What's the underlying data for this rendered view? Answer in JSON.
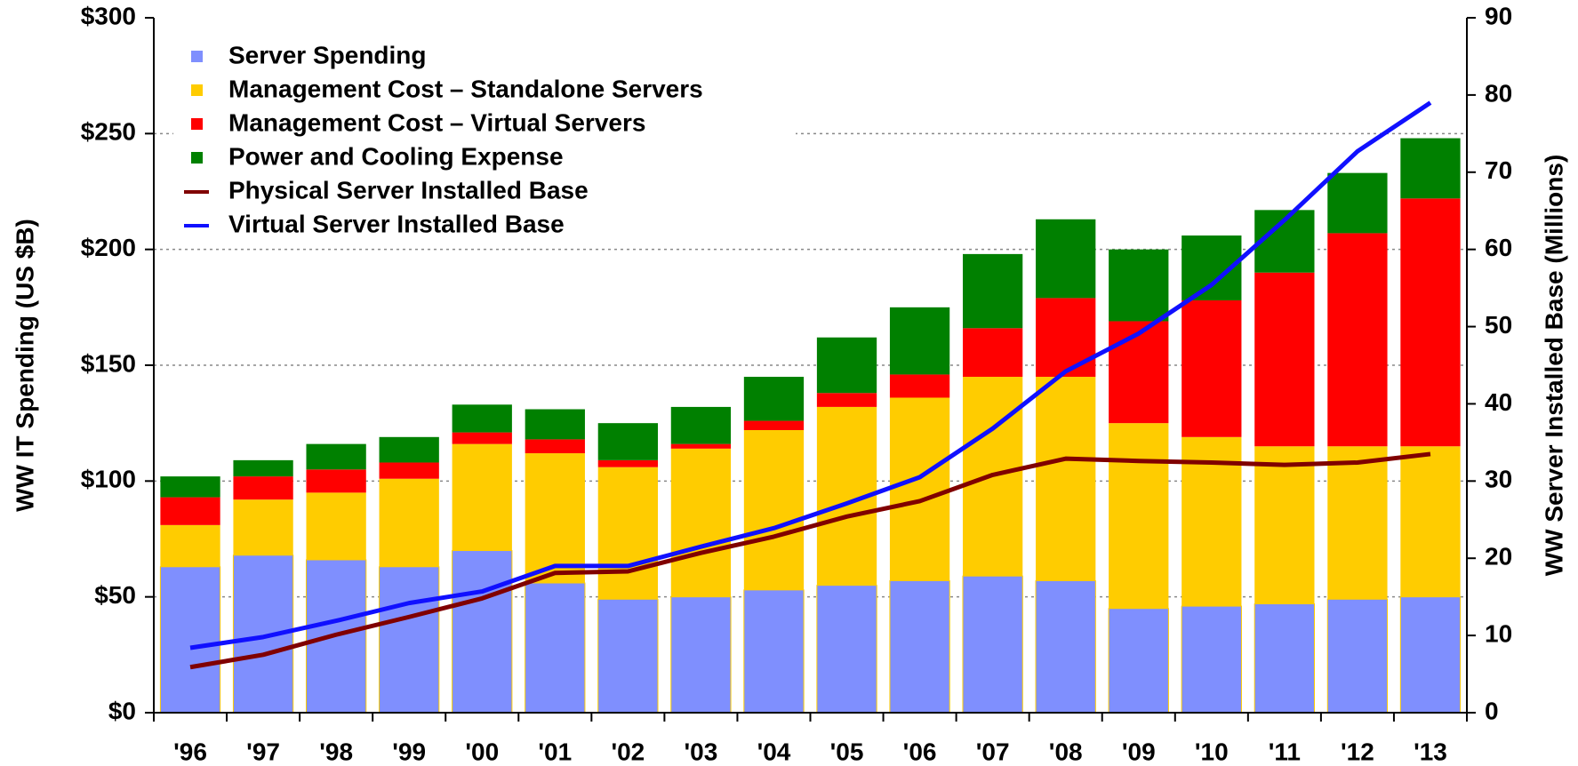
{
  "chart_data": {
    "type": "bar",
    "stacked": true,
    "categories": [
      "'96",
      "'97",
      "'98",
      "'99",
      "'00",
      "'01",
      "'02",
      "'03",
      "'04",
      "'05",
      "'06",
      "'07",
      "'08",
      "'09",
      "'10",
      "'11",
      "'12",
      "'13"
    ],
    "series": [
      {
        "name": "Server Spending",
        "color": "#7f8ffe",
        "values": [
          63,
          68,
          66,
          63,
          70,
          56,
          49,
          50,
          53,
          55,
          57,
          59,
          57,
          45,
          46,
          47,
          49,
          50
        ]
      },
      {
        "name": "Management Cost – Standalone Servers",
        "color": "#ffcc00",
        "values": [
          18,
          24,
          29,
          38,
          46,
          56,
          57,
          64,
          69,
          77,
          79,
          86,
          88,
          80,
          73,
          68,
          66,
          65
        ]
      },
      {
        "name": "Management Cost – Virtual Servers",
        "color": "#ff0000",
        "values": [
          12,
          10,
          10,
          7,
          5,
          6,
          3,
          2,
          4,
          6,
          10,
          21,
          34,
          44,
          59,
          75,
          92,
          107
        ]
      },
      {
        "name": "Power and Cooling Expense",
        "color": "#008000",
        "values": [
          9,
          7,
          11,
          11,
          12,
          13,
          16,
          16,
          19,
          24,
          29,
          32,
          34,
          31,
          28,
          27,
          26,
          26
        ]
      },
      {
        "name": "Physical Server Installed Base",
        "color": "#800000",
        "type": "line",
        "axis": "y2",
        "values": [
          5.9,
          7.5,
          10.1,
          12.4,
          14.8,
          18.1,
          18.3,
          20.7,
          22.8,
          25.4,
          27.4,
          30.8,
          32.9,
          32.6,
          32.4,
          32.1,
          32.4,
          33.5
        ]
      },
      {
        "name": "Virtual Server Installed Base",
        "color": "#1010ff",
        "type": "line",
        "axis": "y2",
        "values": [
          8.4,
          9.8,
          11.9,
          14.2,
          15.7,
          19,
          19,
          21.5,
          23.9,
          27.1,
          30.5,
          36.8,
          44.2,
          49.1,
          55.4,
          63.8,
          72.7,
          79
        ]
      }
    ],
    "ylabel": "WW IT Spending (US $B)",
    "y2label": "WW Server Installed Base (Millions)",
    "ylim": [
      0,
      300
    ],
    "yticks": [
      {
        "value": 0,
        "label": "$0"
      },
      {
        "value": 50,
        "label": "$50"
      },
      {
        "value": 100,
        "label": "$100"
      },
      {
        "value": 150,
        "label": "$150"
      },
      {
        "value": 200,
        "label": "$200"
      },
      {
        "value": 250,
        "label": "$250"
      },
      {
        "value": 300,
        "label": "$300"
      }
    ],
    "y2lim": [
      0,
      90
    ],
    "y2ticks": [
      0,
      10,
      20,
      30,
      40,
      50,
      60,
      70,
      80,
      90
    ],
    "grid": true,
    "legend": "upper left"
  }
}
